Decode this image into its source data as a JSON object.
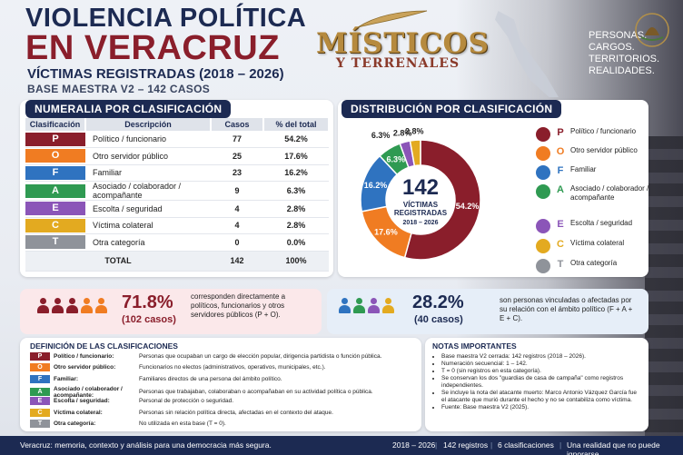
{
  "header": {
    "title_line1": "VIOLENCIA POLÍTICA",
    "title_line2": "EN VERACRUZ",
    "subtitle": "VÍCTIMAS REGISTRADAS (2018 – 2026)",
    "base": "BASE MAESTRA V2 – 142 CASOS",
    "logo_big": "MÍSTICOS",
    "logo_small": "Y TERRENALES",
    "tagline": [
      "PERSONAS.",
      "CARGOS.",
      "TERRITORIOS.",
      "REALIDADES."
    ]
  },
  "numeralia": {
    "heading": "NUMERALIA POR CLASIFICACIÓN",
    "columns": [
      "Clasificación",
      "Descripción",
      "Casos",
      "% del total"
    ],
    "rows": [
      {
        "code": "P",
        "desc": "Político / funcionario",
        "cases": "77",
        "pct": "54.2%",
        "color": "#8a1e2b"
      },
      {
        "code": "O",
        "desc": "Otro servidor público",
        "cases": "25",
        "pct": "17.6%",
        "color": "#f07c22"
      },
      {
        "code": "F",
        "desc": "Familiar",
        "cases": "23",
        "pct": "16.2%",
        "color": "#2f73c0"
      },
      {
        "code": "A",
        "desc": "Asociado / colaborador / acompañante",
        "cases": "9",
        "pct": "6.3%",
        "color": "#2f9a52"
      },
      {
        "code": "E",
        "desc": "Escolta / seguridad",
        "cases": "4",
        "pct": "2.8%",
        "color": "#8b55b8"
      },
      {
        "code": "C",
        "desc": "Víctima colateral",
        "cases": "4",
        "pct": "2.8%",
        "color": "#e3aa20"
      },
      {
        "code": "T",
        "desc": "Otra categoría",
        "cases": "0",
        "pct": "0.0%",
        "color": "#8f939a"
      }
    ],
    "total_label": "TOTAL",
    "total_cases": "142",
    "total_pct": "100%"
  },
  "distribution": {
    "heading": "DISTRIBUCIÓN POR CLASIFICACIÓN",
    "center_number": "142",
    "center_l1": "VÍCTIMAS",
    "center_l2": "REGISTRADAS",
    "center_l3": "2018 – 2026",
    "legend": [
      {
        "code": "P",
        "label": "Político / funcionario",
        "color": "#8a1e2b"
      },
      {
        "code": "O",
        "label": "Otro servidor público",
        "color": "#f07c22"
      },
      {
        "code": "F",
        "label": "Familiar",
        "color": "#2f73c0"
      },
      {
        "code": "A",
        "label": "Asociado / colaborador / acompañante",
        "color": "#2f9a52"
      },
      {
        "code": "E",
        "label": "Escolta / seguridad",
        "color": "#8b55b8"
      },
      {
        "code": "C",
        "label": "Víctima colateral",
        "color": "#e3aa20"
      },
      {
        "code": "T",
        "label": "Otra categoría",
        "color": "#8f939a"
      }
    ]
  },
  "chart_data": {
    "type": "pie",
    "title": "DISTRIBUCIÓN POR CLASIFICACIÓN",
    "categories": [
      "P",
      "O",
      "F",
      "A",
      "E",
      "C",
      "T"
    ],
    "values": [
      54.2,
      17.6,
      16.2,
      6.3,
      2.8,
      2.8,
      0.0
    ],
    "counts": [
      77,
      25,
      23,
      9,
      4,
      4,
      0
    ],
    "labels": [
      "54.2%",
      "17.6%",
      "16.2%",
      "6.3%",
      "2.8%",
      "2.8%",
      ""
    ],
    "colors": [
      "#8a1e2b",
      "#f07c22",
      "#2f73c0",
      "#2f9a52",
      "#8b55b8",
      "#e3aa20",
      "#8f939a"
    ],
    "legend": "right"
  },
  "stats": {
    "left_pct": "71.8%",
    "left_cases": "(102 casos)",
    "left_text": "corresponden directamente a políticos, funcionarios y otros servidores públicos (P + O).",
    "right_pct": "28.2%",
    "right_cases": "(40 casos)",
    "right_text": "son personas vinculadas o afectadas por su relación con el ámbito político (F + A + E + C)."
  },
  "definitions": {
    "heading": "DEFINICIÓN DE LAS CLASIFICACIONES",
    "rows": [
      {
        "code": "P",
        "name": "Político / funcionario:",
        "desc": "Personas que ocupaban un cargo de elección popular, dirigencia partidista o función pública.",
        "color": "#8a1e2b"
      },
      {
        "code": "O",
        "name": "Otro servidor público:",
        "desc": "Funcionarios no electos (administrativos, operativos, municipales, etc.).",
        "color": "#f07c22"
      },
      {
        "code": "F",
        "name": "Familiar:",
        "desc": "Familiares directos de una persona del ámbito político.",
        "color": "#2f73c0"
      },
      {
        "code": "A",
        "name": "Asociado / colaborador / acompañante:",
        "desc": "Personas que trabajaban, colaboraban o acompañaban en su actividad política o pública.",
        "color": "#2f9a52"
      },
      {
        "code": "E",
        "name": "Escolta / seguridad:",
        "desc": "Personal de protección o seguridad.",
        "color": "#8b55b8"
      },
      {
        "code": "C",
        "name": "Víctima colateral:",
        "desc": "Personas sin relación política directa, afectadas en el contexto del ataque.",
        "color": "#e3aa20"
      },
      {
        "code": "T",
        "name": "Otra categoría:",
        "desc": "No utilizada en esta base (T = 0).",
        "color": "#8f939a"
      }
    ]
  },
  "notes": {
    "heading": "NOTAS IMPORTANTES",
    "items": [
      "Base maestra V2 cerrada: 142 registros (2018 – 2026).",
      "Numeración secuencial: 1 – 142.",
      "T = 0 (sin registros en esta categoría).",
      "Se conservan los dos \"guardias de casa de campaña\" como registros independientes.",
      "Se incluye la nota del atacante muerto: Marco Antonio Vázquez García fue el atacante que murió durante el hecho y no se contabiliza como víctima.",
      "Fuente: Base maestra V2 (2025)."
    ]
  },
  "footer": {
    "left": "Veracruz: memoria, contexto y análisis para una democracia más segura.",
    "r1": "2018 – 2026",
    "r2": "142 registros",
    "r3": "6 clasificaciones",
    "r4": "Una realidad que no puede ignorarse."
  }
}
